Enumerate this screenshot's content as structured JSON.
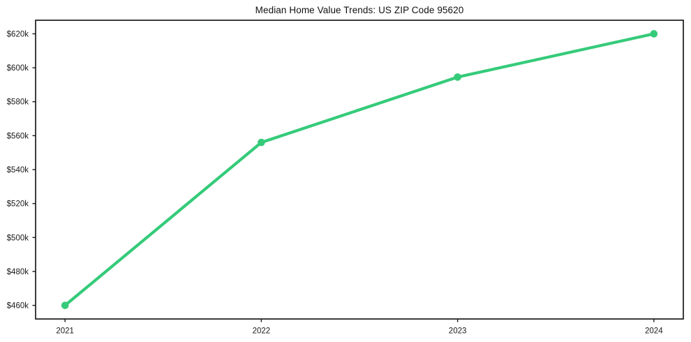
{
  "figure": {
    "background": "#ffffff"
  },
  "chart_data": {
    "type": "line",
    "title": "Median Home Value Trends: US ZIP Code 95620",
    "x": [
      2021,
      2022,
      2023,
      2024
    ],
    "x_tick_labels": [
      "2021",
      "2022",
      "2023",
      "2024"
    ],
    "values": [
      460000,
      556000,
      594500,
      620000
    ],
    "yticks": [
      {
        "value": 460000,
        "label": "$460k"
      },
      {
        "value": 480000,
        "label": "$480k"
      },
      {
        "value": 500000,
        "label": "$500k"
      },
      {
        "value": 520000,
        "label": "$520k"
      },
      {
        "value": 540000,
        "label": "$540k"
      },
      {
        "value": 560000,
        "label": "$560k"
      },
      {
        "value": 580000,
        "label": "$580k"
      },
      {
        "value": 600000,
        "label": "$600k"
      },
      {
        "value": 620000,
        "label": "$620k"
      }
    ],
    "xlabel": "",
    "ylabel": "",
    "xlim": [
      2020.85,
      2024.15
    ],
    "ylim": [
      452000,
      628000
    ],
    "grid": false,
    "legend": false,
    "marker": "circle",
    "line_color": "#35cb7a",
    "axis_color": "#1a1a1a",
    "text_color": "#1a1a1a",
    "background": "#ffffff"
  }
}
